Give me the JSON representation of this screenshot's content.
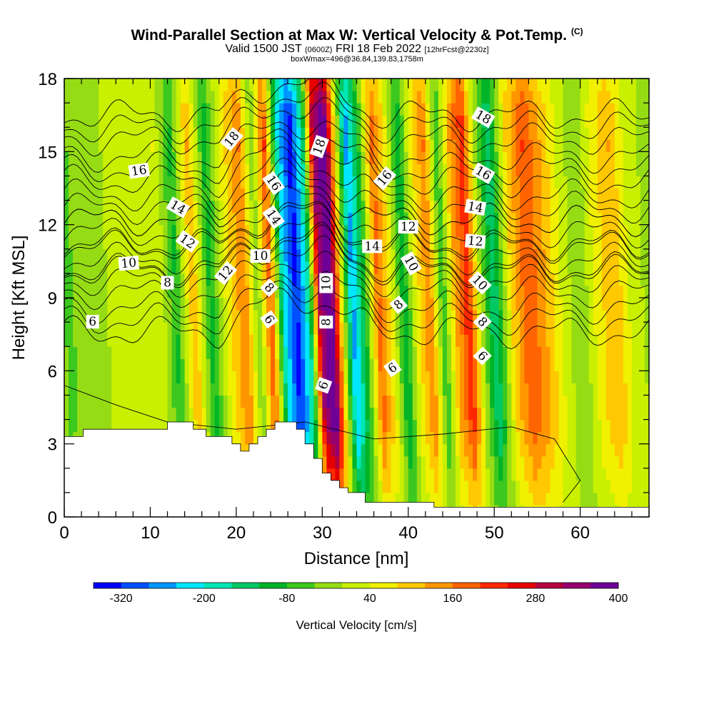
{
  "title": {
    "main": "Wind-Parallel Section at Max W: Vertical Velocity & Pot.Temp.",
    "copyright": "(C)",
    "valid_prefix": "Valid 1500 JST",
    "valid_utc": "(0600Z)",
    "valid_date": "FRI 18 Feb 2022",
    "forecast": "[12hrFcst@2230z]",
    "box_info": "boxWmax=496@36.84,139.83,1758m"
  },
  "chart_data": {
    "type": "heatmap",
    "xlabel": "Distance [nm]",
    "ylabel": "Height [Kft MSL]",
    "xlim": [
      0,
      68
    ],
    "ylim": [
      0,
      18
    ],
    "x_ticks": [
      0,
      10,
      20,
      30,
      40,
      50,
      60
    ],
    "y_ticks": [
      0,
      3,
      6,
      9,
      12,
      15,
      18
    ],
    "colorbar": {
      "label": "Vertical Velocity [cm/s]",
      "tick_labels": [
        "-320",
        "-200",
        "-80",
        "40",
        "160",
        "280",
        "400"
      ],
      "tick_values": [
        -320,
        -200,
        -80,
        40,
        160,
        280,
        400
      ],
      "min": -360,
      "step": 40,
      "colors": [
        "#0000ff",
        "#0050ff",
        "#0096ff",
        "#00e6ff",
        "#00e6b4",
        "#00c864",
        "#00b428",
        "#3cc81e",
        "#96dc14",
        "#c8f000",
        "#f0f000",
        "#ffc800",
        "#ff9600",
        "#ff6400",
        "#ff2800",
        "#e60000",
        "#b4003c",
        "#96006e",
        "#6e0096"
      ]
    },
    "w_bands": [
      {
        "x": 0,
        "w": -50
      },
      {
        "x": 3,
        "w": -20
      },
      {
        "x": 6,
        "w": 10
      },
      {
        "x": 9,
        "w": 30
      },
      {
        "x": 11,
        "w": 40
      },
      {
        "x": 13,
        "w": -90
      },
      {
        "x": 15,
        "w": 120
      },
      {
        "x": 17,
        "w": -100
      },
      {
        "x": 19,
        "w": 60
      },
      {
        "x": 21,
        "w": 160
      },
      {
        "x": 22.5,
        "w": -40
      },
      {
        "x": 24,
        "w": 200
      },
      {
        "x": 25.5,
        "w": -200
      },
      {
        "x": 27,
        "w": -340
      },
      {
        "x": 28.5,
        "w": -150
      },
      {
        "x": 29.7,
        "w": 320
      },
      {
        "x": 31,
        "w": 420
      },
      {
        "x": 32,
        "w": 120
      },
      {
        "x": 33.5,
        "w": -260
      },
      {
        "x": 35,
        "w": -80
      },
      {
        "x": 36.5,
        "w": 180
      },
      {
        "x": 38,
        "w": 60
      },
      {
        "x": 39.5,
        "w": -120
      },
      {
        "x": 41,
        "w": 60
      },
      {
        "x": 42.5,
        "w": 160
      },
      {
        "x": 44,
        "w": -80
      },
      {
        "x": 45.5,
        "w": 120
      },
      {
        "x": 47,
        "w": 230
      },
      {
        "x": 48.5,
        "w": -10
      },
      {
        "x": 50,
        "w": -160
      },
      {
        "x": 52,
        "w": 80
      },
      {
        "x": 54,
        "w": 200
      },
      {
        "x": 56,
        "w": 120
      },
      {
        "x": 58,
        "w": 30
      },
      {
        "x": 60,
        "w": -40
      },
      {
        "x": 62,
        "w": 60
      },
      {
        "x": 64,
        "w": 120
      },
      {
        "x": 66,
        "w": 20
      },
      {
        "x": 68,
        "w": -10
      }
    ],
    "terrain": [
      [
        0,
        3.3
      ],
      [
        2.2,
        3.3
      ],
      [
        2.2,
        3.6
      ],
      [
        12,
        3.6
      ],
      [
        12,
        3.9
      ],
      [
        15,
        3.9
      ],
      [
        15,
        3.6
      ],
      [
        16.5,
        3.6
      ],
      [
        16.5,
        3.3
      ],
      [
        19.5,
        3.3
      ],
      [
        19.5,
        3.0
      ],
      [
        20.5,
        3.0
      ],
      [
        20.5,
        2.7
      ],
      [
        21.5,
        2.7
      ],
      [
        21.5,
        3.0
      ],
      [
        22.5,
        3.0
      ],
      [
        22.5,
        3.3
      ],
      [
        23.5,
        3.3
      ],
      [
        23.5,
        3.6
      ],
      [
        24.5,
        3.6
      ],
      [
        24.5,
        3.9
      ],
      [
        27,
        3.9
      ],
      [
        27,
        3.6
      ],
      [
        28,
        3.6
      ],
      [
        28,
        3.0
      ],
      [
        29,
        3.0
      ],
      [
        29,
        2.4
      ],
      [
        30,
        2.4
      ],
      [
        30,
        1.8
      ],
      [
        31,
        1.8
      ],
      [
        31,
        1.5
      ],
      [
        32,
        1.5
      ],
      [
        32,
        1.2
      ],
      [
        33,
        1.2
      ],
      [
        33,
        1.0
      ],
      [
        35,
        1.0
      ],
      [
        35,
        0.6
      ],
      [
        43,
        0.6
      ],
      [
        43,
        0.4
      ],
      [
        68,
        0.4
      ]
    ],
    "theta_levels": [
      {
        "level": 6,
        "y": 7.6,
        "label": "6"
      },
      {
        "level": 8,
        "y": 9.2,
        "label": "8"
      },
      {
        "level": 10,
        "y": 10.1,
        "label": "10"
      },
      {
        "level": 12,
        "y": 11.2,
        "label": "12"
      },
      {
        "level": 14,
        "y": 12.2,
        "label": "14"
      },
      {
        "level": 16,
        "y": 13.8,
        "label": "16"
      },
      {
        "level": 18,
        "y": 15.5,
        "label": "18"
      }
    ],
    "contour_labels": [
      {
        "text": "6",
        "x": 3.3,
        "y": 8.0,
        "rot": 0
      },
      {
        "text": "8",
        "x": 12,
        "y": 9.6,
        "rot": 0
      },
      {
        "text": "10",
        "x": 7.5,
        "y": 10.4,
        "rot": -5
      },
      {
        "text": "12",
        "x": 14.3,
        "y": 11.3,
        "rot": 35
      },
      {
        "text": "14",
        "x": 13.2,
        "y": 12.7,
        "rot": 30
      },
      {
        "text": "16",
        "x": 8.7,
        "y": 14.2,
        "rot": -8
      },
      {
        "text": "18",
        "x": 19.5,
        "y": 15.5,
        "rot": -50
      },
      {
        "text": "12",
        "x": 18.8,
        "y": 10.0,
        "rot": -50
      },
      {
        "text": "10",
        "x": 22.8,
        "y": 10.7,
        "rot": 0
      },
      {
        "text": "8",
        "x": 23.8,
        "y": 9.4,
        "rot": 45
      },
      {
        "text": "6",
        "x": 23.8,
        "y": 8.1,
        "rot": 55
      },
      {
        "text": "16",
        "x": 24.3,
        "y": 13.7,
        "rot": 55
      },
      {
        "text": "14",
        "x": 24.3,
        "y": 12.3,
        "rot": 55
      },
      {
        "text": "18",
        "x": 29.7,
        "y": 15.2,
        "rot": -70
      },
      {
        "text": "10",
        "x": 30.5,
        "y": 9.6,
        "rot": -90
      },
      {
        "text": "8",
        "x": 30.5,
        "y": 8.0,
        "rot": -90
      },
      {
        "text": "6",
        "x": 30.2,
        "y": 5.4,
        "rot": -70
      },
      {
        "text": "16",
        "x": 37.3,
        "y": 13.9,
        "rot": -50
      },
      {
        "text": "14",
        "x": 35.8,
        "y": 11.1,
        "rot": 0
      },
      {
        "text": "12",
        "x": 40,
        "y": 11.9,
        "rot": 0
      },
      {
        "text": "10",
        "x": 40.3,
        "y": 10.4,
        "rot": 60
      },
      {
        "text": "8",
        "x": 38.9,
        "y": 8.7,
        "rot": -40
      },
      {
        "text": "6",
        "x": 38.2,
        "y": 6.1,
        "rot": -35
      },
      {
        "text": "18",
        "x": 48.7,
        "y": 16.4,
        "rot": 30
      },
      {
        "text": "16",
        "x": 48.7,
        "y": 14.1,
        "rot": 30
      },
      {
        "text": "14",
        "x": 47.8,
        "y": 12.7,
        "rot": 10
      },
      {
        "text": "12",
        "x": 47.8,
        "y": 11.3,
        "rot": 5
      },
      {
        "text": "10",
        "x": 48.3,
        "y": 9.6,
        "rot": 45
      },
      {
        "text": "8",
        "x": 48.6,
        "y": 8.0,
        "rot": 45
      },
      {
        "text": "6",
        "x": 48.6,
        "y": 6.6,
        "rot": 45
      }
    ]
  }
}
